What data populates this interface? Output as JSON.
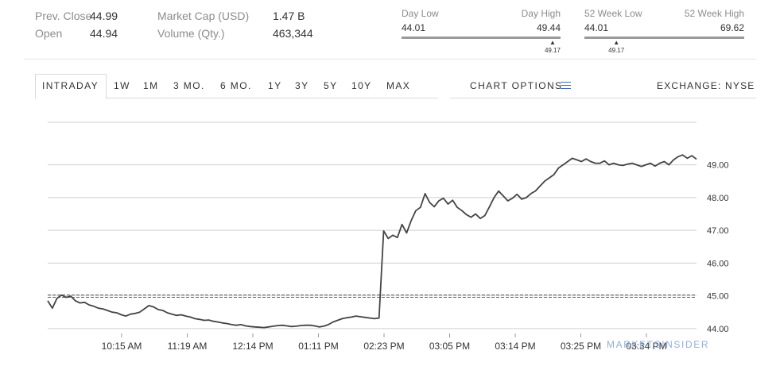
{
  "stats": {
    "prev_close_label": "Prev. Close",
    "prev_close_value": "44.99",
    "open_label": "Open",
    "open_value": "44.94",
    "market_cap_label": "Market Cap (USD)",
    "market_cap_value": "1.47 B",
    "volume_label": "Volume (Qty.)",
    "volume_value": "463,344"
  },
  "ranges": {
    "day": {
      "low_label": "Day Low",
      "high_label": "Day High",
      "low": "44.01",
      "high": "49.44",
      "current": "49.17",
      "fraction": 0.95
    },
    "week52": {
      "low_label": "52 Week Low",
      "high_label": "52 Week High",
      "low": "44.01",
      "high": "69.62",
      "current": "49.17",
      "fraction": 0.2
    }
  },
  "tabs": [
    {
      "label": "INTRADAY",
      "active": true
    },
    {
      "label": "1W"
    },
    {
      "label": "1M"
    },
    {
      "label": "3 MO."
    },
    {
      "label": "6 MO."
    },
    {
      "label": "1Y"
    },
    {
      "label": "3Y"
    },
    {
      "label": "5Y"
    },
    {
      "label": "10Y"
    },
    {
      "label": "MAX"
    }
  ],
  "chart_options_label": "CHART OPTIONS",
  "exchange_label": "EXCHANGE: NYSE",
  "watermark": "MARKETSINSIDER",
  "colors": {
    "accent": "#3a6fb5",
    "line": "#444444",
    "grid": "#cfcfcf",
    "watermark": "#8fb1da"
  },
  "chart_data": {
    "type": "line",
    "x_tick_labels": [
      "10:15 AM",
      "11:19 AM",
      "12:14 PM",
      "01:11 PM",
      "02:23 PM",
      "03:05 PM",
      "03:14 PM",
      "03:25 PM",
      "03:34 PM"
    ],
    "y_tick_labels": [
      "44.00",
      "45.00",
      "46.00",
      "47.00",
      "48.00",
      "49.00"
    ],
    "ylim": [
      43.85,
      50.3
    ],
    "reference_line": {
      "label": "previous close",
      "value": 44.99,
      "style": "dashed"
    },
    "grid": true,
    "series": [
      {
        "values": [
          44.85,
          44.62,
          44.92,
          45.02,
          44.95,
          44.99,
          44.85,
          44.78,
          44.8,
          44.72,
          44.68,
          44.62,
          44.6,
          44.55,
          44.5,
          44.48,
          44.42,
          44.38,
          44.44,
          44.46,
          44.5,
          44.6,
          44.7,
          44.66,
          44.58,
          44.55,
          44.48,
          44.44,
          44.4,
          44.42,
          44.38,
          44.35,
          44.3,
          44.28,
          44.25,
          44.26,
          44.22,
          44.2,
          44.17,
          44.15,
          44.12,
          44.1,
          44.12,
          44.08,
          44.06,
          44.05,
          44.04,
          44.03,
          44.05,
          44.07,
          44.09,
          44.1,
          44.08,
          44.06,
          44.07,
          44.09,
          44.1,
          44.1,
          44.08,
          44.05,
          44.07,
          44.12,
          44.2,
          44.25,
          44.3,
          44.33,
          44.35,
          44.38,
          44.36,
          44.34,
          44.32,
          44.3,
          44.32,
          46.98,
          46.75,
          46.85,
          46.78,
          47.18,
          46.92,
          47.3,
          47.6,
          47.7,
          48.12,
          47.85,
          47.72,
          47.9,
          47.98,
          47.8,
          47.92,
          47.7,
          47.6,
          47.48,
          47.4,
          47.5,
          47.36,
          47.45,
          47.72,
          48.0,
          48.2,
          48.05,
          47.9,
          47.98,
          48.1,
          47.95,
          48.0,
          48.12,
          48.2,
          48.35,
          48.5,
          48.6,
          48.7,
          48.9,
          49.0,
          49.1,
          49.2,
          49.15,
          49.1,
          49.18,
          49.1,
          49.05,
          49.05,
          49.12,
          49.0,
          49.05,
          49.0,
          48.98,
          49.02,
          49.05,
          49.0,
          48.95,
          49.0,
          49.05,
          48.96,
          49.05,
          49.1,
          49.0,
          49.15,
          49.25,
          49.3,
          49.2,
          49.28,
          49.17
        ]
      }
    ]
  }
}
